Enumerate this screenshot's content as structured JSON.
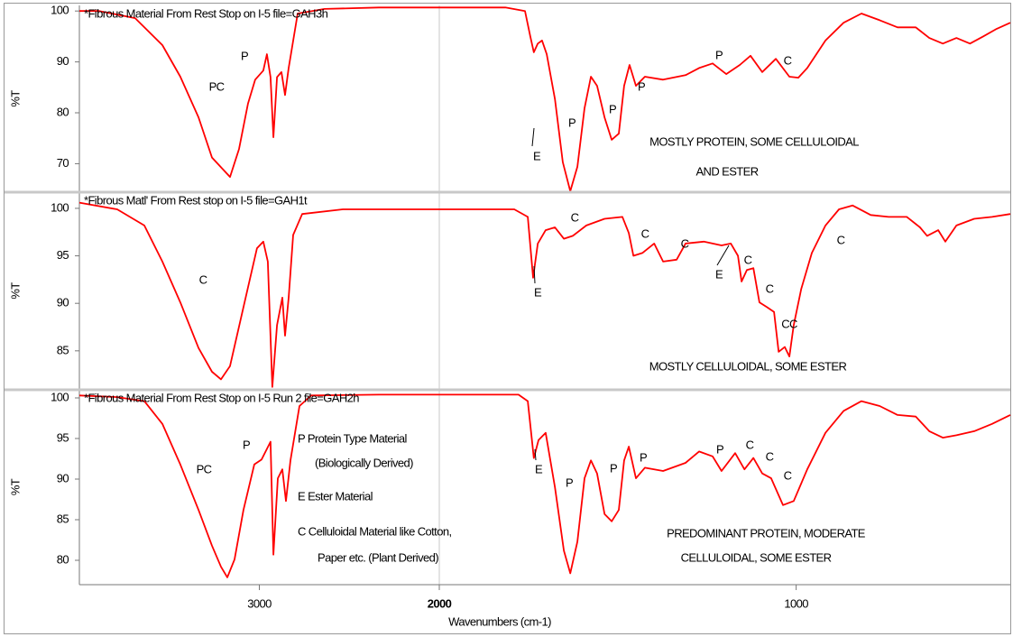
{
  "chart_data": [
    {
      "type": "line",
      "title": "*Fibrous Material From Rest Stop on I-5 file=GAH3h",
      "ylabel": "%T",
      "xlim": [
        4000,
        400
      ],
      "x_break": 2000,
      "ylim": [
        64.4,
        101.1
      ],
      "yticks": [
        70,
        80,
        90,
        100
      ],
      "color": "#ff0000",
      "x": [
        4000,
        3890,
        3690,
        3539,
        3439,
        3338,
        3263,
        3163,
        3113,
        3063,
        3023,
        2978,
        2958,
        2938,
        2922,
        2902,
        2877,
        2857,
        2837,
        2787,
        2637,
        2336,
        2000,
        1815,
        1760,
        1745,
        1735,
        1724,
        1712,
        1699,
        1676,
        1654,
        1633,
        1613,
        1593,
        1575,
        1558,
        1537,
        1517,
        1497,
        1482,
        1467,
        1449,
        1424,
        1373,
        1310,
        1272,
        1234,
        1196,
        1158,
        1128,
        1095,
        1057,
        1019,
        994,
        969,
        918,
        867,
        817,
        766,
        716,
        665,
        627,
        589,
        551,
        513,
        476,
        438,
        400
      ],
      "values": [
        100,
        100,
        98.6,
        93.3,
        87.1,
        79.1,
        71.2,
        67.4,
        72.9,
        81.8,
        86.5,
        88.3,
        91.5,
        87,
        75.2,
        87,
        88,
        83.5,
        88.8,
        99.5,
        100.4,
        100.7,
        100.7,
        100.7,
        100,
        95,
        91.9,
        93.6,
        94.2,
        91.5,
        82.7,
        70.3,
        64.6,
        69.4,
        80.9,
        87.1,
        85.3,
        79.1,
        74.7,
        75.9,
        85.3,
        89.4,
        85.3,
        87.1,
        86.5,
        87.4,
        88.8,
        89.7,
        87.6,
        89.4,
        91.2,
        88,
        90.6,
        87.1,
        86.9,
        88.8,
        94.2,
        97.7,
        99.5,
        98.2,
        96.8,
        96.8,
        94.7,
        93.6,
        94.7,
        93.6,
        95,
        96.5,
        97.7
      ],
      "annotations": [
        "PC",
        "P",
        "E",
        "P",
        "P",
        "P",
        "P",
        "C",
        "MOSTLY PROTEIN, SOME CELLULOIDAL",
        "AND ESTER"
      ]
    },
    {
      "type": "line",
      "title": "*Fibrous Matl' From Rest stop on  I-5 file=GAH1t",
      "ylabel": "%T",
      "xlim": [
        4000,
        400
      ],
      "x_break": 2000,
      "ylim": [
        80.9,
        101.7
      ],
      "yticks": [
        85,
        90,
        95,
        100
      ],
      "color": "#ff0000",
      "x": [
        4000,
        3790,
        3639,
        3539,
        3439,
        3338,
        3263,
        3213,
        3163,
        3088,
        3013,
        2978,
        2953,
        2928,
        2902,
        2872,
        2857,
        2837,
        2812,
        2762,
        2536,
        2000,
        1790,
        1752,
        1737,
        1724,
        1702,
        1676,
        1651,
        1626,
        1588,
        1537,
        1487,
        1469,
        1456,
        1431,
        1398,
        1373,
        1335,
        1310,
        1259,
        1209,
        1183,
        1163,
        1153,
        1138,
        1120,
        1103,
        1082,
        1062,
        1049,
        1032,
        1019,
        1007,
        986,
        956,
        918,
        880,
        842,
        791,
        741,
        690,
        653,
        633,
        602,
        582,
        551,
        501,
        451,
        400
      ],
      "values": [
        100.6,
        99.9,
        98.2,
        94.4,
        90.1,
        85.3,
        82.8,
        82,
        83.4,
        89.6,
        95.8,
        96.5,
        94.4,
        81.2,
        87.7,
        90.6,
        86.6,
        90.6,
        97.2,
        99.4,
        99.9,
        99.9,
        99.9,
        99.1,
        92.7,
        96.3,
        97.7,
        98,
        96.8,
        97.1,
        98.2,
        98.9,
        99.1,
        97.4,
        95,
        95.3,
        96.3,
        94.4,
        94.6,
        96.3,
        96.5,
        96.1,
        96.3,
        95,
        92.3,
        93.5,
        93.7,
        90.1,
        89.6,
        89.1,
        84.9,
        85.4,
        84.4,
        87.7,
        91.5,
        95.3,
        98.2,
        99.9,
        100.3,
        99.3,
        99.1,
        99.1,
        98,
        97.1,
        97.7,
        96.5,
        98.2,
        98.9,
        99.1,
        99.4
      ],
      "annotations": [
        "C",
        "C",
        "E",
        "C",
        "C",
        "E",
        "C",
        "C",
        "CC",
        "C",
        "MOSTLY CELLULOIDAL, SOME ESTER"
      ]
    },
    {
      "type": "line",
      "title": "*Fibrous Material From Rest Stop on I-5 Run 2 file=GAH2h",
      "ylabel": "%T",
      "xlabel": "Wavenumbers (cm-1)",
      "xlim": [
        4000,
        400
      ],
      "x_break": 2000,
      "xticks": [
        3000,
        2000,
        1000
      ],
      "ylim": [
        77,
        101
      ],
      "yticks": [
        80,
        85,
        90,
        95,
        100
      ],
      "color": "#ff0000",
      "x": [
        4000,
        3790,
        3639,
        3539,
        3439,
        3338,
        3263,
        3213,
        3178,
        3138,
        3088,
        3028,
        2988,
        2938,
        2922,
        2897,
        2872,
        2852,
        2827,
        2777,
        2712,
        2336,
        2000,
        1778,
        1752,
        1735,
        1722,
        1702,
        1676,
        1651,
        1633,
        1613,
        1593,
        1575,
        1558,
        1537,
        1517,
        1497,
        1482,
        1469,
        1449,
        1424,
        1373,
        1310,
        1272,
        1234,
        1209,
        1171,
        1145,
        1120,
        1095,
        1070,
        1037,
        1007,
        969,
        918,
        867,
        817,
        766,
        716,
        665,
        627,
        589,
        551,
        501,
        451,
        400
      ],
      "values": [
        100.3,
        100.1,
        99.6,
        96.8,
        91.8,
        86.2,
        81.8,
        79.2,
        77.9,
        80.1,
        86.2,
        91.8,
        92.4,
        94.6,
        80.7,
        90.1,
        91.2,
        87.3,
        92.3,
        99,
        100.3,
        100.4,
        100.4,
        100.4,
        99.6,
        92.6,
        94.8,
        95.7,
        89,
        81.2,
        78.4,
        82.3,
        90.1,
        92.3,
        90.7,
        85.7,
        84.8,
        86.2,
        92.3,
        94,
        90.1,
        91.4,
        91,
        92,
        93.4,
        92.8,
        91,
        93.2,
        91.2,
        92.6,
        90.7,
        90.1,
        86.8,
        87.3,
        91.2,
        95.7,
        98.4,
        99.6,
        99,
        97.9,
        97.7,
        95.9,
        95.1,
        95.4,
        95.9,
        96.8,
        97.9
      ],
      "annotations": [
        "PC",
        "P",
        "P Protein Type Material",
        "(Biologically Derived)",
        "E Ester Material",
        "C Celluloidal Material like Cotton,",
        "Paper etc. (Plant Derived)",
        "E",
        "P",
        "P",
        "P",
        "P",
        "C",
        "C",
        "C",
        "PREDOMINANT PROTEIN, MODERATE",
        "CELLULOIDAL, SOME ESTER"
      ]
    }
  ]
}
